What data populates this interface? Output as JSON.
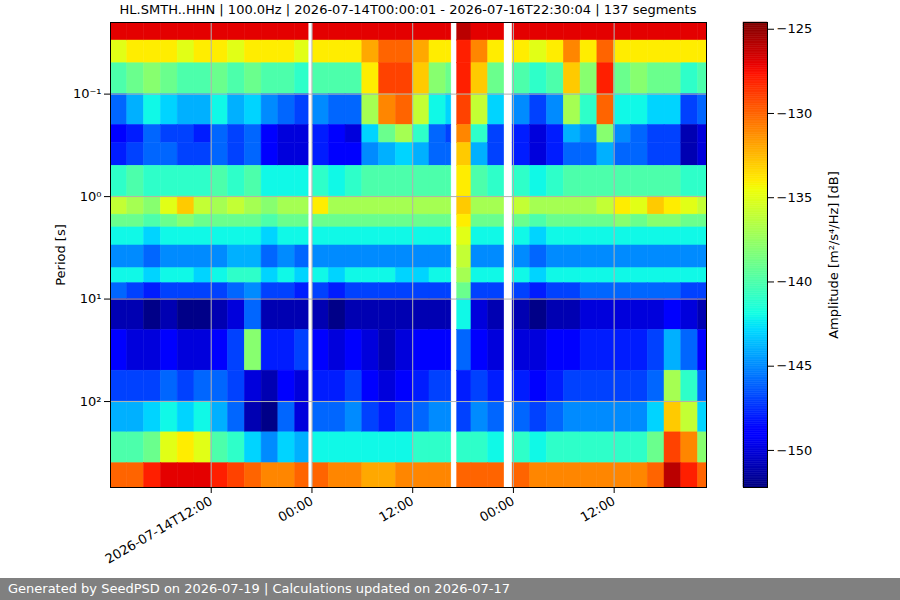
{
  "chart_data": {
    "type": "heatmap",
    "title": "HL.SMTH..HHN | 100.0Hz | 2026-07-14T00:00:01 - 2026-07-16T22:30:04 | 137 segments",
    "caption": "Generated by SeedPSD on 2026-07-19 | Calculations updated on 2026-07-17",
    "ylabel": "Period [s]",
    "x": [
      "2026-07-14T00:00",
      "2026-07-14T02:00",
      "2026-07-14T04:00",
      "2026-07-14T06:00",
      "2026-07-14T08:00",
      "2026-07-14T10:00",
      "2026-07-14T12:00",
      "2026-07-14T14:00",
      "2026-07-14T16:00",
      "2026-07-14T18:00",
      "2026-07-14T20:00",
      "2026-07-14T22:00",
      "2026-07-14T23:36",
      "2026-07-15T00:06",
      "2026-07-15T02:00",
      "2026-07-15T04:00",
      "2026-07-15T06:00",
      "2026-07-15T08:00",
      "2026-07-15T10:00",
      "2026-07-15T12:00",
      "2026-07-15T14:00",
      "2026-07-15T16:00",
      "2026-07-15T16:36",
      "2026-07-15T17:18",
      "2026-07-15T19:00",
      "2026-07-15T21:00",
      "2026-07-15T22:54",
      "2026-07-15T23:54",
      "2026-07-16T02:00",
      "2026-07-16T04:00",
      "2026-07-16T06:00",
      "2026-07-16T08:00",
      "2026-07-16T10:00",
      "2026-07-16T12:00",
      "2026-07-16T14:00",
      "2026-07-16T16:00",
      "2026-07-16T18:00",
      "2026-07-16T20:00",
      "2026-07-16T22:00",
      "2026-07-16T23:00"
    ],
    "y": [
      0.02,
      0.03,
      0.05,
      0.1,
      0.2,
      0.3,
      0.5,
      1,
      1.5,
      2,
      3,
      5,
      7,
      10,
      20,
      50,
      100,
      200,
      400,
      690
    ],
    "values": [
      [
        -127,
        -135,
        -140,
        -146,
        -149,
        -148,
        -141,
        -136,
        -139,
        -142,
        -145,
        -142,
        -146,
        -151,
        -149,
        -147,
        -144,
        -140,
        -130
      ],
      [
        -127,
        -134,
        -139,
        -144,
        -148,
        -147,
        -140,
        -137,
        -139,
        -142,
        -145,
        -142,
        -147,
        -151,
        -150,
        -147,
        -144,
        -140,
        -130
      ],
      [
        -127,
        -134,
        -138,
        -142,
        -146,
        -146,
        -141,
        -138,
        -140,
        -143,
        -146,
        -143,
        -148,
        -152,
        -150,
        -147,
        -143,
        -139,
        -128
      ],
      [
        -127,
        -134,
        -139,
        -143,
        -147,
        -146,
        -141,
        -135,
        -139,
        -142,
        -145,
        -142,
        -147,
        -151,
        -149,
        -146,
        -142,
        -135,
        -127
      ],
      [
        -127,
        -135,
        -140,
        -144,
        -147,
        -147,
        -141,
        -133,
        -138,
        -142,
        -145,
        -142,
        -147,
        -152,
        -150,
        -147,
        -143,
        -134,
        -127
      ],
      [
        -127,
        -134,
        -140,
        -144,
        -148,
        -147,
        -141,
        -136,
        -139,
        -142,
        -145,
        -143,
        -147,
        -152,
        -150,
        -146,
        -142,
        -135,
        -127
      ],
      [
        -127,
        -134,
        -139,
        -142,
        -146,
        -146,
        -140,
        -137,
        -139,
        -142,
        -145,
        -142,
        -147,
        -151,
        -149,
        -146,
        -144,
        -140,
        -128
      ],
      [
        -127,
        -135,
        -140,
        -144,
        -147,
        -147,
        -141,
        -136,
        -139,
        -142,
        -144,
        -141,
        -146,
        -150,
        -147,
        -147,
        -146,
        -141,
        -129
      ],
      [
        -127,
        -134,
        -139,
        -143,
        -146,
        -146,
        -140,
        -137,
        -139,
        -142,
        -144,
        -141,
        -145,
        -146,
        -138,
        -150,
        -151,
        -143,
        -130
      ],
      [
        -127,
        -134,
        -140,
        -145,
        -149,
        -149,
        -142,
        -138,
        -140,
        -143,
        -146,
        -143,
        -147,
        -151,
        -148,
        -151,
        -152,
        -145,
        -131
      ],
      [
        -127,
        -134,
        -140,
        -146,
        -150,
        -150,
        -142,
        -137,
        -139,
        -142,
        -145,
        -142,
        -147,
        -151,
        -148,
        -149,
        -146,
        -143,
        -131
      ],
      [
        -127,
        -135,
        -141,
        -147,
        -150,
        -150,
        -142,
        -137,
        -139,
        -142,
        -146,
        -143,
        -148,
        -151,
        -147,
        -150,
        -150,
        -144,
        -130
      ],
      null,
      [
        -127,
        -134,
        -140,
        -145,
        -148,
        -148,
        -141,
        -134,
        -139,
        -142,
        -145,
        -142,
        -147,
        -151,
        -149,
        -148,
        -146,
        -142,
        -130
      ],
      [
        -127,
        -134,
        -140,
        -146,
        -149,
        -149,
        -142,
        -137,
        -139,
        -142,
        -145,
        -143,
        -148,
        -152,
        -150,
        -148,
        -146,
        -142,
        -131
      ],
      [
        -127,
        -134,
        -140,
        -146,
        -150,
        -149,
        -141,
        -137,
        -139,
        -142,
        -145,
        -142,
        -147,
        -151,
        -149,
        -147,
        -145,
        -142,
        -131
      ],
      [
        -127,
        -132,
        -134,
        -137,
        -143,
        -145,
        -140,
        -137,
        -139,
        -142,
        -145,
        -142,
        -147,
        -151,
        -150,
        -149,
        -147,
        -142,
        -132
      ],
      [
        -127,
        -130,
        -129,
        -131,
        -139,
        -144,
        -140,
        -137,
        -139,
        -142,
        -145,
        -142,
        -147,
        -151,
        -151,
        -150,
        -148,
        -142,
        -132
      ],
      [
        -127,
        -130,
        -129,
        -130,
        -137,
        -143,
        -140,
        -137,
        -139,
        -142,
        -145,
        -143,
        -147,
        -151,
        -150,
        -149,
        -147,
        -142,
        -131
      ],
      [
        -127,
        -132,
        -133,
        -136,
        -141,
        -144,
        -140,
        -137,
        -139,
        -142,
        -145,
        -143,
        -147,
        -151,
        -149,
        -148,
        -146,
        -141,
        -131
      ],
      [
        -127,
        -134,
        -138,
        -142,
        -146,
        -146,
        -140,
        -137,
        -139,
        -142,
        -145,
        -142,
        -147,
        -151,
        -149,
        -147,
        -145,
        -141,
        -131
      ],
      [
        -127,
        -134,
        -139,
        -143,
        -147,
        -146,
        -140,
        -137,
        -139,
        -142,
        -145,
        -142,
        -147,
        -151,
        -149,
        -147,
        -145,
        -141,
        -131
      ],
      null,
      [
        -126,
        -128,
        -128,
        -129,
        -131,
        -133,
        -134,
        -133,
        -134,
        -135,
        -136,
        -137,
        -139,
        -142,
        -146,
        -148,
        -147,
        -141,
        -130
      ],
      [
        -127,
        -131,
        -133,
        -136,
        -141,
        -144,
        -140,
        -137,
        -139,
        -142,
        -145,
        -142,
        -147,
        -150,
        -149,
        -147,
        -145,
        -141,
        -130
      ],
      [
        -127,
        -134,
        -139,
        -143,
        -147,
        -147,
        -141,
        -137,
        -139,
        -142,
        -145,
        -142,
        -147,
        -151,
        -150,
        -148,
        -146,
        -142,
        -130
      ],
      null,
      [
        -127,
        -134,
        -140,
        -145,
        -148,
        -148,
        -141,
        -136,
        -139,
        -142,
        -145,
        -142,
        -147,
        -151,
        -150,
        -148,
        -146,
        -141,
        -130
      ],
      [
        -127,
        -135,
        -141,
        -147,
        -150,
        -150,
        -142,
        -137,
        -140,
        -143,
        -146,
        -143,
        -148,
        -152,
        -150,
        -149,
        -147,
        -142,
        -131
      ],
      [
        -127,
        -134,
        -140,
        -145,
        -148,
        -148,
        -141,
        -137,
        -139,
        -142,
        -145,
        -142,
        -147,
        -151,
        -149,
        -148,
        -146,
        -141,
        -131
      ],
      [
        -127,
        -131,
        -133,
        -137,
        -144,
        -146,
        -140,
        -137,
        -139,
        -142,
        -145,
        -142,
        -147,
        -151,
        -149,
        -147,
        -145,
        -141,
        -131
      ],
      [
        -127,
        -134,
        -138,
        -141,
        -145,
        -146,
        -140,
        -137,
        -139,
        -142,
        -145,
        -142,
        -146,
        -150,
        -148,
        -147,
        -145,
        -141,
        -131
      ],
      [
        -127,
        -130,
        -128,
        -130,
        -138,
        -144,
        -140,
        -136,
        -139,
        -142,
        -145,
        -142,
        -146,
        -150,
        -148,
        -147,
        -145,
        -141,
        -131
      ],
      [
        -127,
        -134,
        -139,
        -142,
        -145,
        -146,
        -140,
        -134,
        -138,
        -142,
        -145,
        -142,
        -146,
        -150,
        -148,
        -147,
        -145,
        -141,
        -131
      ],
      [
        -127,
        -134,
        -138,
        -142,
        -146,
        -146,
        -140,
        -135,
        -139,
        -142,
        -145,
        -142,
        -146,
        -150,
        -148,
        -147,
        -145,
        -141,
        -131
      ],
      [
        -127,
        -134,
        -139,
        -143,
        -147,
        -147,
        -140,
        -133,
        -138,
        -142,
        -145,
        -142,
        -146,
        -150,
        -147,
        -146,
        -143,
        -139,
        -130
      ],
      [
        -127,
        -134,
        -139,
        -143,
        -147,
        -147,
        -140,
        -134,
        -138,
        -142,
        -145,
        -142,
        -146,
        -149,
        -144,
        -137,
        -133,
        -129,
        -126
      ],
      [
        -127,
        -134,
        -141,
        -147,
        -151,
        -151,
        -141,
        -135,
        -139,
        -142,
        -145,
        -142,
        -147,
        -150,
        -146,
        -141,
        -136,
        -131,
        -128
      ],
      [
        -127,
        -134,
        -140,
        -146,
        -150,
        -150,
        -141,
        -136,
        -139,
        -142,
        -145,
        -142,
        -147,
        -151,
        -149,
        -146,
        -143,
        -138,
        -130
      ]
    ],
    "xlim": [
      "2026-07-14T00:00",
      "2026-07-16T23:00"
    ],
    "xticks": [
      {
        "value": "2026-07-14T12:00",
        "label": "2026-07-14T12:00"
      },
      {
        "value": "2026-07-15T00:00",
        "label": "00:00"
      },
      {
        "value": "2026-07-15T12:00",
        "label": "12:00"
      },
      {
        "value": "2026-07-16T00:00",
        "label": "00:00"
      },
      {
        "value": "2026-07-16T12:00",
        "label": "12:00"
      }
    ],
    "ylim": [
      0.02,
      690
    ],
    "yticks": [
      {
        "value": 0.1,
        "label": "10⁻¹"
      },
      {
        "value": 1,
        "label": "10⁰"
      },
      {
        "value": 10,
        "label": "10¹"
      },
      {
        "value": 100,
        "label": "10²"
      }
    ],
    "log": "y",
    "grid": true,
    "color": "jet",
    "colorbar": {
      "label": "Amplitude [m²/s⁴/Hz] [dB]",
      "range": [
        -152.2,
        -124.6
      ],
      "ticks": [
        -150,
        -145,
        -140,
        -135,
        -130,
        -125
      ]
    }
  }
}
